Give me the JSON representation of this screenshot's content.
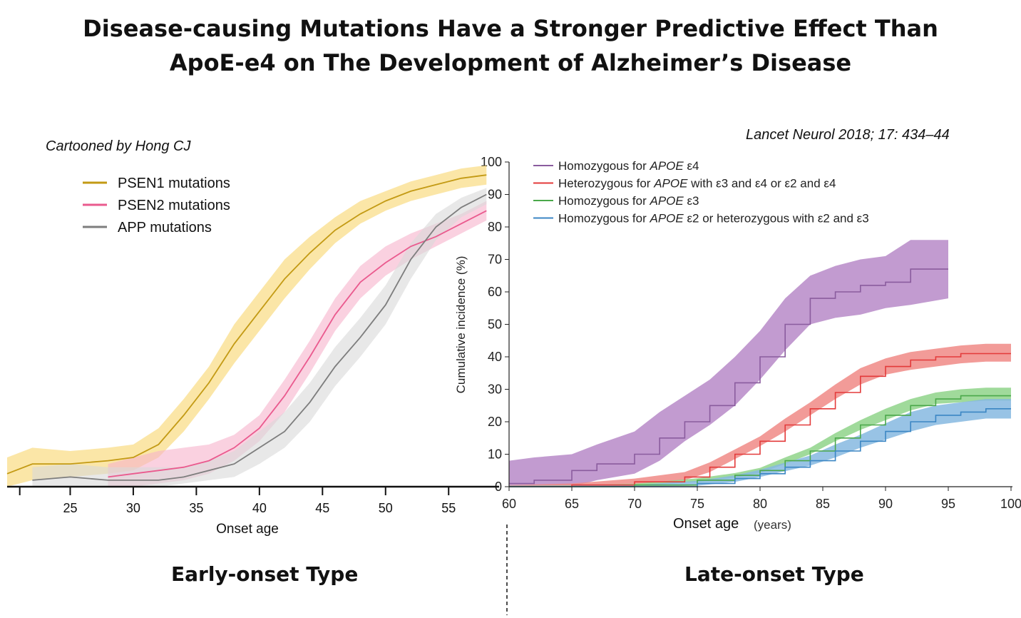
{
  "title": {
    "line1": "Disease-causing Mutations Have a Stronger Predictive Effect Than",
    "line2": "ApoE-e4 on The Development of Alzheimer’s Disease"
  },
  "credit": "Cartooned by Hong CJ",
  "citation": "Lancet Neurol 2018; 17: 434–44",
  "sections": {
    "early": "Early-onset Type",
    "late": "Late-onset Type"
  },
  "colors": {
    "psen1": "#c39a14",
    "psen1_band": "#f8d66c",
    "psen2": "#ea5a8e",
    "psen2_band": "#f6b3cb",
    "app": "#7d7d7d",
    "app_band": "#d9d9d9",
    "e4hom": "#8a5c9e",
    "e4hom_band": "#b789c8",
    "het": "#e33a3a",
    "het_band": "#f08a86",
    "e3hom": "#4aa84a",
    "e3hom_band": "#8fd38a",
    "e2": "#3b86c4",
    "e2_band": "#86b8e0"
  },
  "chart_data": [
    {
      "type": "line",
      "title": "Early-onset Type",
      "xlabel": "Onset age",
      "ylabel": "",
      "xlim": [
        20,
        59
      ],
      "ylim": [
        0,
        100
      ],
      "x_ticks": [
        25,
        30,
        35,
        40,
        45,
        50,
        55
      ],
      "legend": "top-left",
      "series": [
        {
          "key": "psen1",
          "name": "PSEN1 mutations",
          "x": [
            20,
            22,
            25,
            28,
            30,
            32,
            34,
            36,
            38,
            40,
            42,
            44,
            46,
            48,
            50,
            52,
            54,
            56,
            58
          ],
          "values": [
            4,
            7,
            7,
            8,
            9,
            13,
            22,
            32,
            44,
            54,
            64,
            72,
            79,
            84,
            88,
            91,
            93,
            95,
            96
          ],
          "lower": [
            0,
            2,
            3,
            4,
            5,
            9,
            17,
            27,
            38,
            48,
            58,
            67,
            75,
            81,
            85,
            88,
            90,
            92,
            93
          ],
          "upper": [
            9,
            12,
            11,
            12,
            13,
            18,
            27,
            37,
            50,
            60,
            70,
            77,
            83,
            88,
            91,
            94,
            96,
            98,
            99
          ]
        },
        {
          "key": "psen2",
          "name": "PSEN2 mutations",
          "x": [
            28,
            30,
            32,
            34,
            36,
            38,
            40,
            42,
            44,
            46,
            48,
            50,
            52,
            54,
            56,
            58
          ],
          "values": [
            3,
            4,
            5,
            6,
            8,
            12,
            18,
            28,
            40,
            53,
            63,
            69,
            74,
            77,
            81,
            85
          ],
          "lower": [
            0,
            0,
            1,
            2,
            4,
            8,
            14,
            23,
            35,
            48,
            58,
            65,
            70,
            74,
            78,
            82
          ],
          "upper": [
            7,
            9,
            11,
            12,
            13,
            16,
            22,
            33,
            45,
            58,
            68,
            74,
            78,
            81,
            84,
            88
          ]
        },
        {
          "key": "app",
          "name": "APP mutations",
          "x": [
            22,
            25,
            28,
            30,
            32,
            34,
            36,
            38,
            40,
            42,
            44,
            46,
            48,
            50,
            52,
            54,
            56,
            58
          ],
          "values": [
            2,
            3,
            2,
            2,
            2,
            3,
            5,
            7,
            12,
            17,
            26,
            37,
            46,
            56,
            70,
            80,
            86,
            90
          ],
          "lower": [
            0,
            0,
            0,
            0,
            0,
            1,
            2,
            3,
            7,
            12,
            20,
            31,
            40,
            50,
            64,
            76,
            83,
            87
          ],
          "upper": [
            6,
            7,
            6,
            6,
            6,
            6,
            8,
            11,
            17,
            23,
            32,
            43,
            52,
            62,
            75,
            84,
            89,
            92
          ]
        }
      ]
    },
    {
      "type": "line",
      "title": "Late-onset Type",
      "xlabel": "Onset age",
      "xlabel_unit": "(years)",
      "ylabel": "Cumulative incidence (%)",
      "xlim": [
        60,
        100
      ],
      "ylim": [
        0,
        100
      ],
      "x_ticks": [
        60,
        65,
        70,
        75,
        80,
        85,
        90,
        95,
        100
      ],
      "y_ticks": [
        0,
        10,
        20,
        30,
        40,
        50,
        60,
        70,
        80,
        90,
        100
      ],
      "legend": "top-left",
      "series": [
        {
          "key": "e4hom",
          "name": "Homozygous for APOE ε4",
          "name_parts": [
            "Homozygous for ",
            "APOE",
            " ε4"
          ],
          "x": [
            60,
            62,
            65,
            67,
            70,
            72,
            74,
            76,
            78,
            80,
            82,
            84,
            86,
            88,
            90,
            92,
            95
          ],
          "values": [
            1,
            2,
            5,
            7,
            10,
            15,
            20,
            25,
            32,
            40,
            50,
            58,
            60,
            62,
            63,
            67,
            67
          ],
          "lower": [
            0,
            0,
            0,
            2,
            4,
            8,
            14,
            19,
            25,
            33,
            42,
            50,
            52,
            53,
            55,
            56,
            58
          ],
          "upper": [
            8,
            9,
            10,
            13,
            17,
            23,
            28,
            33,
            40,
            48,
            58,
            65,
            68,
            70,
            71,
            76,
            76
          ]
        },
        {
          "key": "het",
          "name": "Heterozygous for APOE with ε3 and ε4 or ε2 and ε4",
          "name_parts": [
            "Heterozygous for ",
            "APOE",
            " with ε3 and ε4 or ε2 and ε4"
          ],
          "x": [
            60,
            65,
            70,
            74,
            76,
            78,
            80,
            82,
            84,
            86,
            88,
            90,
            92,
            94,
            96,
            98,
            100
          ],
          "values": [
            0,
            0.5,
            1.5,
            3,
            6,
            10,
            14,
            19,
            24,
            29,
            34,
            37,
            39,
            40,
            41,
            41,
            41
          ],
          "lower": [
            0,
            0,
            0.8,
            2,
            4.5,
            8.5,
            12.5,
            17,
            22,
            27,
            31.5,
            34.5,
            36,
            37,
            38,
            38.5,
            38.5
          ],
          "upper": [
            0.5,
            1,
            2.5,
            4.5,
            7.5,
            11.5,
            15.5,
            21,
            26,
            31.5,
            36.5,
            39.5,
            41.5,
            42.5,
            43.5,
            44,
            44
          ]
        },
        {
          "key": "e3hom",
          "name": "Homozygous for APOE ε3",
          "name_parts": [
            "Homozygous for ",
            "APOE",
            " ε3"
          ],
          "x": [
            60,
            65,
            70,
            75,
            78,
            80,
            82,
            84,
            86,
            88,
            90,
            92,
            94,
            96,
            98,
            100
          ],
          "values": [
            0,
            0,
            0.5,
            2,
            3.5,
            5,
            8,
            11,
            15,
            19,
            22,
            25,
            27,
            28,
            28,
            28
          ],
          "lower": [
            0,
            0,
            0.2,
            1.5,
            2.8,
            4.2,
            7,
            10,
            14,
            17.5,
            20.5,
            23.5,
            25.5,
            26,
            26.5,
            26.5
          ],
          "upper": [
            0.3,
            0.4,
            0.9,
            2.6,
            4.2,
            5.8,
            9,
            12,
            16.5,
            20.5,
            24,
            27,
            29,
            30,
            30.5,
            30.5
          ]
        },
        {
          "key": "e2",
          "name": "Homozygous for APOE ε2 or heterozygous with ε2 and ε3",
          "name_parts": [
            "Homozygous for ",
            "APOE",
            " ε2 or heterozygous with ε2 and ε3"
          ],
          "x": [
            60,
            65,
            70,
            75,
            78,
            80,
            82,
            84,
            86,
            88,
            90,
            92,
            94,
            96,
            98,
            100
          ],
          "values": [
            0,
            0,
            0,
            1,
            2.5,
            4,
            6,
            8,
            11,
            14,
            17,
            20,
            22,
            23,
            24,
            24
          ],
          "lower": [
            0,
            0,
            0,
            0.3,
            1.5,
            3,
            4.8,
            6.5,
            9,
            12,
            14.5,
            17,
            19,
            20,
            21,
            21
          ],
          "upper": [
            0.3,
            0.3,
            0.5,
            1.8,
            3.5,
            5.2,
            7.4,
            9.6,
            13,
            16,
            19.5,
            23,
            25,
            26,
            27,
            27
          ]
        }
      ]
    }
  ]
}
